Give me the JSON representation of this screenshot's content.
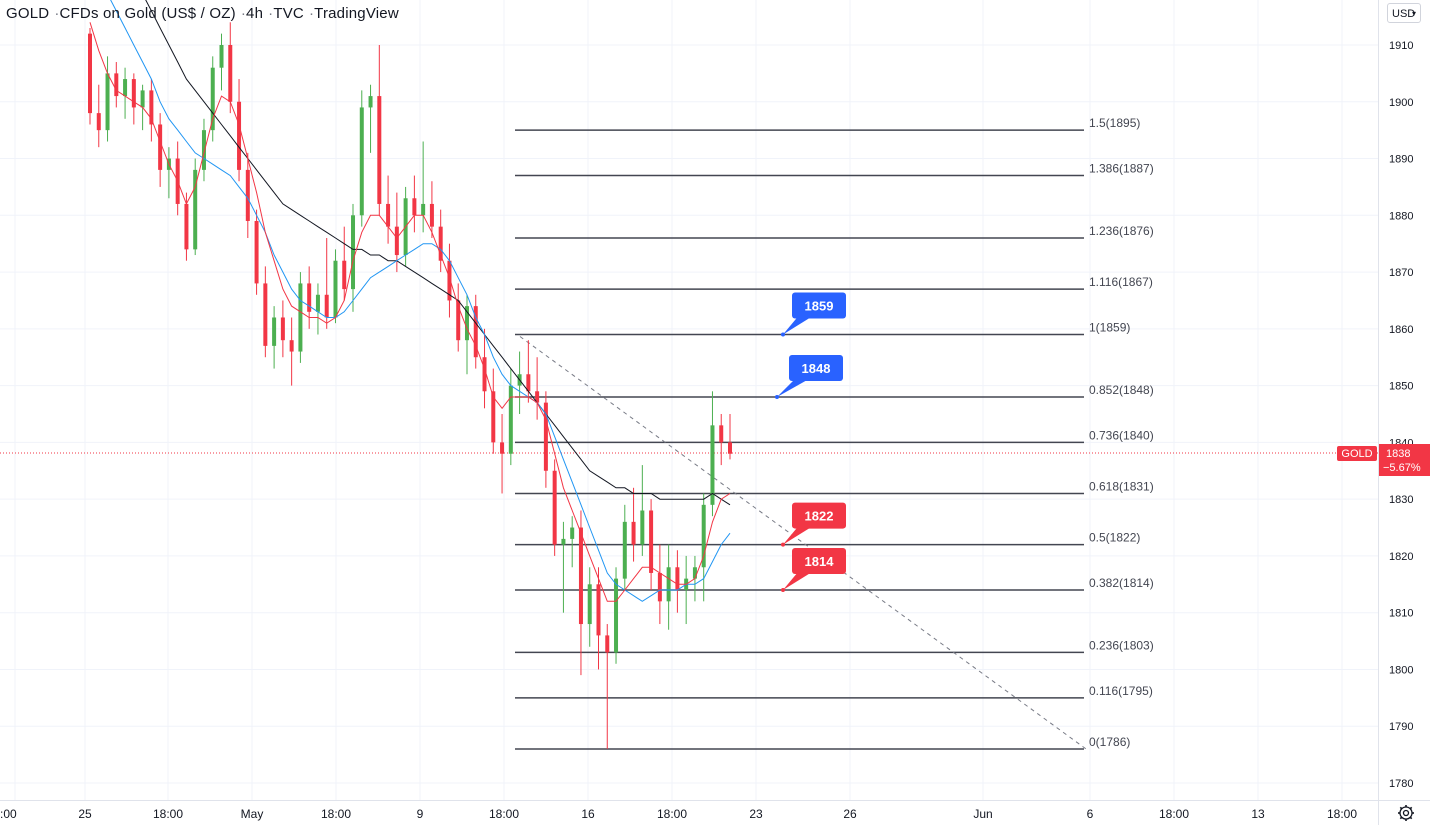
{
  "header": {
    "symbol": "GOLD",
    "description": "CFDs on Gold (US$ / OZ)",
    "interval": "4h",
    "source": "TVC",
    "platform": "TradingView"
  },
  "currency_selector": {
    "value": "USD"
  },
  "price_tag": {
    "label": "GOLD",
    "price": "1838",
    "change": "−5.67%"
  },
  "colors": {
    "up": "#4caf50",
    "down": "#f23645",
    "ema_fast": "#f23645",
    "ema_mid": "#2196f3",
    "ema_slow": "#131722",
    "blue_label": "#2962ff",
    "red_label": "#f23645"
  },
  "icons": {
    "settings": "gear-icon",
    "currency_dropdown": "chevron-down-icon"
  },
  "chart_data": {
    "type": "candlestick",
    "y_axis": {
      "min": 1775,
      "max": 1915,
      "ticks": [
        1780,
        1790,
        1800,
        1810,
        1820,
        1830,
        1840,
        1850,
        1860,
        1870,
        1880,
        1890,
        1900,
        1910
      ]
    },
    "x_axis_labels": [
      ":00",
      "25",
      "18:00",
      "May",
      "18:00",
      "9",
      "18:00",
      "16",
      "18:00",
      "23",
      "26",
      "Jun",
      "6",
      "18:00",
      "13",
      "18:00"
    ],
    "current_price": 1838,
    "fib_levels": [
      {
        "label": "1.5(1895)",
        "value": 1895
      },
      {
        "label": "1.386(1887)",
        "value": 1887
      },
      {
        "label": "1.236(1876)",
        "value": 1876
      },
      {
        "label": "1.116(1867)",
        "value": 1867
      },
      {
        "label": "1(1859)",
        "value": 1859
      },
      {
        "label": "0.852(1848)",
        "value": 1848
      },
      {
        "label": "0.736(1840)",
        "value": 1840
      },
      {
        "label": "0.618(1831)",
        "value": 1831
      },
      {
        "label": "0.5(1822)",
        "value": 1822
      },
      {
        "label": "0.382(1814)",
        "value": 1814
      },
      {
        "label": "0.236(1803)",
        "value": 1803
      },
      {
        "label": "0.116(1795)",
        "value": 1795
      },
      {
        "label": "0(1786)",
        "value": 1786
      }
    ],
    "callouts": [
      {
        "text": "1859",
        "value": 1859,
        "color": "blue"
      },
      {
        "text": "1848",
        "value": 1848,
        "color": "blue"
      },
      {
        "text": "1822",
        "value": 1822,
        "color": "red"
      },
      {
        "text": "1814",
        "value": 1814,
        "color": "red"
      }
    ],
    "trendline": {
      "from_value": 1859,
      "to_value": 1786
    },
    "candles": [
      [
        1912,
        1913,
        1896,
        1898
      ],
      [
        1898,
        1903,
        1892,
        1895
      ],
      [
        1895,
        1908,
        1893,
        1905
      ],
      [
        1905,
        1907,
        1899,
        1901
      ],
      [
        1901,
        1906,
        1897,
        1904
      ],
      [
        1904,
        1905,
        1896,
        1899
      ],
      [
        1899,
        1903,
        1895,
        1902
      ],
      [
        1902,
        1904,
        1893,
        1896
      ],
      [
        1896,
        1898,
        1885,
        1888
      ],
      [
        1888,
        1892,
        1883,
        1890
      ],
      [
        1890,
        1893,
        1880,
        1882
      ],
      [
        1882,
        1884,
        1872,
        1874
      ],
      [
        1874,
        1890,
        1873,
        1888
      ],
      [
        1888,
        1897,
        1886,
        1895
      ],
      [
        1895,
        1908,
        1893,
        1906
      ],
      [
        1906,
        1912,
        1902,
        1910
      ],
      [
        1910,
        1914,
        1898,
        1900
      ],
      [
        1900,
        1904,
        1886,
        1888
      ],
      [
        1888,
        1891,
        1876,
        1879
      ],
      [
        1879,
        1881,
        1866,
        1868
      ],
      [
        1868,
        1871,
        1855,
        1857
      ],
      [
        1857,
        1864,
        1853,
        1862
      ],
      [
        1862,
        1865,
        1855,
        1858
      ],
      [
        1858,
        1862,
        1850,
        1856
      ],
      [
        1856,
        1870,
        1854,
        1868
      ],
      [
        1868,
        1871,
        1860,
        1863
      ],
      [
        1863,
        1868,
        1859,
        1866
      ],
      [
        1866,
        1876,
        1860,
        1862
      ],
      [
        1862,
        1874,
        1861,
        1872
      ],
      [
        1872,
        1878,
        1865,
        1867
      ],
      [
        1867,
        1882,
        1863,
        1880
      ],
      [
        1880,
        1902,
        1878,
        1899
      ],
      [
        1899,
        1903,
        1891,
        1901
      ],
      [
        1901,
        1910,
        1880,
        1882
      ],
      [
        1882,
        1887,
        1875,
        1878
      ],
      [
        1878,
        1884,
        1870,
        1873
      ],
      [
        1873,
        1885,
        1871,
        1883
      ],
      [
        1883,
        1887,
        1877,
        1880
      ],
      [
        1880,
        1893,
        1877,
        1882
      ],
      [
        1882,
        1886,
        1876,
        1878
      ],
      [
        1878,
        1881,
        1870,
        1872
      ],
      [
        1872,
        1875,
        1862,
        1865
      ],
      [
        1865,
        1868,
        1856,
        1858
      ],
      [
        1858,
        1866,
        1852,
        1864
      ],
      [
        1864,
        1866,
        1853,
        1855
      ],
      [
        1855,
        1860,
        1846,
        1849
      ],
      [
        1849,
        1853,
        1838,
        1840
      ],
      [
        1840,
        1845,
        1831,
        1838
      ],
      [
        1838,
        1853,
        1836,
        1850
      ],
      [
        1850,
        1856,
        1845,
        1852
      ],
      [
        1852,
        1858,
        1847,
        1849
      ],
      [
        1849,
        1855,
        1844,
        1847
      ],
      [
        1847,
        1849,
        1832,
        1835
      ],
      [
        1835,
        1837,
        1820,
        1822
      ],
      [
        1822,
        1826,
        1810,
        1823
      ],
      [
        1823,
        1827,
        1818,
        1825
      ],
      [
        1825,
        1828,
        1799,
        1808
      ],
      [
        1808,
        1818,
        1804,
        1815
      ],
      [
        1815,
        1818,
        1800,
        1806
      ],
      [
        1806,
        1808,
        1786,
        1803
      ],
      [
        1803,
        1818,
        1801,
        1816
      ],
      [
        1816,
        1829,
        1814,
        1826
      ],
      [
        1826,
        1832,
        1819,
        1822
      ],
      [
        1822,
        1836,
        1820,
        1828
      ],
      [
        1828,
        1830,
        1814,
        1817
      ],
      [
        1817,
        1822,
        1808,
        1812
      ],
      [
        1812,
        1822,
        1807,
        1818
      ],
      [
        1818,
        1821,
        1810,
        1814
      ],
      [
        1814,
        1820,
        1808,
        1816
      ],
      [
        1816,
        1820,
        1812,
        1818
      ],
      [
        1818,
        1831,
        1812,
        1829
      ],
      [
        1829,
        1849,
        1827,
        1843
      ],
      [
        1843,
        1845,
        1836,
        1840
      ],
      [
        1840,
        1845,
        1837,
        1838
      ]
    ],
    "ma_fast": [
      1914,
      1909,
      1905,
      1902,
      1901,
      1900,
      1899,
      1897,
      1893,
      1889,
      1886,
      1882,
      1885,
      1891,
      1897,
      1901,
      1900,
      1896,
      1890,
      1884,
      1877,
      1872,
      1867,
      1864,
      1863,
      1862,
      1862,
      1861,
      1862,
      1865,
      1872,
      1877,
      1880,
      1880,
      1878,
      1876,
      1878,
      1880,
      1880,
      1877,
      1873,
      1869,
      1864,
      1860,
      1857,
      1853,
      1848,
      1846,
      1848,
      1848,
      1848,
      1847,
      1844,
      1838,
      1832,
      1828,
      1824,
      1820,
      1816,
      1812,
      1812,
      1814,
      1816,
      1818,
      1818,
      1817,
      1816,
      1815,
      1815,
      1816,
      1820,
      1826,
      1830,
      1831
    ],
    "ma_mid": [
      1925,
      1922,
      1919,
      1916,
      1913,
      1910,
      1907,
      1904,
      1900,
      1897,
      1895,
      1893,
      1891,
      1890,
      1889,
      1888,
      1887,
      1885,
      1883,
      1880,
      1877,
      1873,
      1870,
      1867,
      1865,
      1864,
      1863,
      1862,
      1862,
      1863,
      1865,
      1867,
      1869,
      1870,
      1871,
      1872,
      1873,
      1874,
      1875,
      1875,
      1874,
      1872,
      1869,
      1866,
      1862,
      1859,
      1855,
      1852,
      1850,
      1849,
      1848,
      1847,
      1845,
      1841,
      1837,
      1833,
      1829,
      1825,
      1821,
      1817,
      1815,
      1814,
      1813,
      1812,
      1813,
      1814,
      1814,
      1814,
      1815,
      1815,
      1816,
      1819,
      1822,
      1824
    ],
    "ma_slow": [
      1934,
      1931,
      1928,
      1926,
      1924,
      1922,
      1919,
      1916,
      1913,
      1910,
      1907,
      1904,
      1902,
      1900,
      1898,
      1896,
      1894,
      1892,
      1890,
      1888,
      1886,
      1884,
      1882,
      1881,
      1880,
      1879,
      1878,
      1877,
      1876,
      1875,
      1874,
      1874,
      1873,
      1873,
      1872,
      1872,
      1871,
      1870,
      1869,
      1868,
      1867,
      1866,
      1865,
      1863,
      1861,
      1859,
      1857,
      1855,
      1853,
      1851,
      1849,
      1847,
      1845,
      1843,
      1841,
      1839,
      1837,
      1835,
      1834,
      1833,
      1832,
      1832,
      1831,
      1831,
      1831,
      1830,
      1830,
      1830,
      1830,
      1830,
      1830,
      1831,
      1830,
      1829
    ]
  }
}
